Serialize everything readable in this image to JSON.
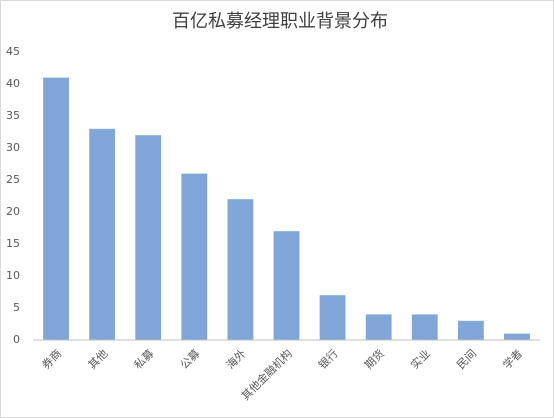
{
  "chart_data": {
    "type": "bar",
    "title": "百亿私募经理职业背景分布",
    "categories": [
      "券商",
      "其他",
      "私募",
      "公募",
      "海外",
      "其他金融机构",
      "银行",
      "期货",
      "实业",
      "民间",
      "学者"
    ],
    "values": [
      41,
      33,
      32,
      26,
      22,
      17,
      7,
      4,
      4,
      3,
      1
    ],
    "color": "#7fa6d6",
    "ylim": [
      0,
      45
    ],
    "yticks": [
      0,
      5,
      10,
      15,
      20,
      25,
      30,
      35,
      40,
      45
    ],
    "grid": false
  }
}
